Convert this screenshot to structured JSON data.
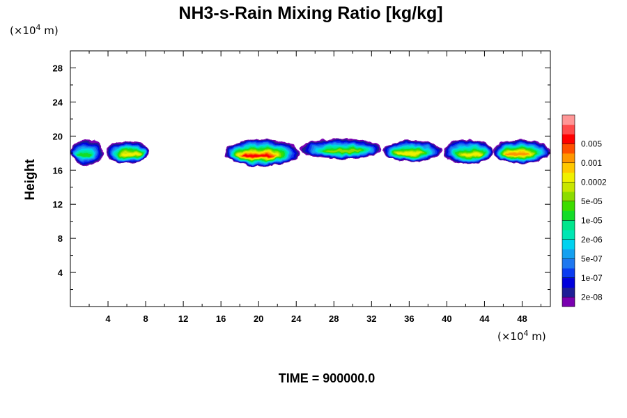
{
  "chart_data": {
    "type": "heatmap",
    "title": "NH3-s-Rain Mixing Ratio [kg/kg]",
    "ylabel": "Height",
    "x_unit": {
      "prefix": "(×10",
      "exp": "4",
      "suffix": " m)"
    },
    "y_unit": {
      "prefix": "(×10",
      "exp": "4",
      "suffix": " m)"
    },
    "xlim": [
      0,
      51
    ],
    "ylim": [
      0,
      30
    ],
    "x_ticks": [
      4,
      8,
      12,
      16,
      20,
      24,
      28,
      32,
      36,
      40,
      44,
      48
    ],
    "y_ticks": [
      4,
      8,
      12,
      16,
      20,
      24,
      28
    ],
    "x_minor_step": 2,
    "y_minor_step": 2,
    "time_label": "TIME = 900000.0",
    "colorbar": {
      "colors": [
        "#7a00b0",
        "#1e1e96",
        "#0000dc",
        "#0a3cf0",
        "#1e78f0",
        "#14a0f0",
        "#00d2f0",
        "#00e6b4",
        "#00e68c",
        "#14dc28",
        "#3cdc00",
        "#8cdc00",
        "#c8e600",
        "#f0f000",
        "#ffc800",
        "#ff9600",
        "#ff5000",
        "#ff0000",
        "#ff4b4b",
        "#ff9696"
      ],
      "labels": [
        "2e-08",
        "1e-07",
        "5e-07",
        "2e-06",
        "1e-05",
        "5e-05",
        "0.0002",
        "0.001",
        "0.005"
      ]
    },
    "cloud_band_height_range": [
      16.5,
      19.8
    ],
    "clouds": [
      {
        "x": [
          0,
          3.5
        ],
        "y": [
          16.6,
          19.6
        ],
        "peak": "1e-05"
      },
      {
        "x": [
          3.8,
          8.3
        ],
        "y": [
          16.8,
          19.5
        ],
        "peak": "0.0002"
      },
      {
        "x": [
          16.4,
          24.3
        ],
        "y": [
          16.5,
          19.6
        ],
        "peak": "0.005"
      },
      {
        "x": [
          24.4,
          33.1
        ],
        "y": [
          17.3,
          19.7
        ],
        "peak": "5e-05"
      },
      {
        "x": [
          33.2,
          39.4
        ],
        "y": [
          17.0,
          19.5
        ],
        "peak": "0.0002"
      },
      {
        "x": [
          39.6,
          44.9
        ],
        "y": [
          16.7,
          19.6
        ],
        "peak": "0.0002"
      },
      {
        "x": [
          44.9,
          51
        ],
        "y": [
          16.8,
          19.6
        ],
        "peak": "0.001"
      }
    ]
  }
}
